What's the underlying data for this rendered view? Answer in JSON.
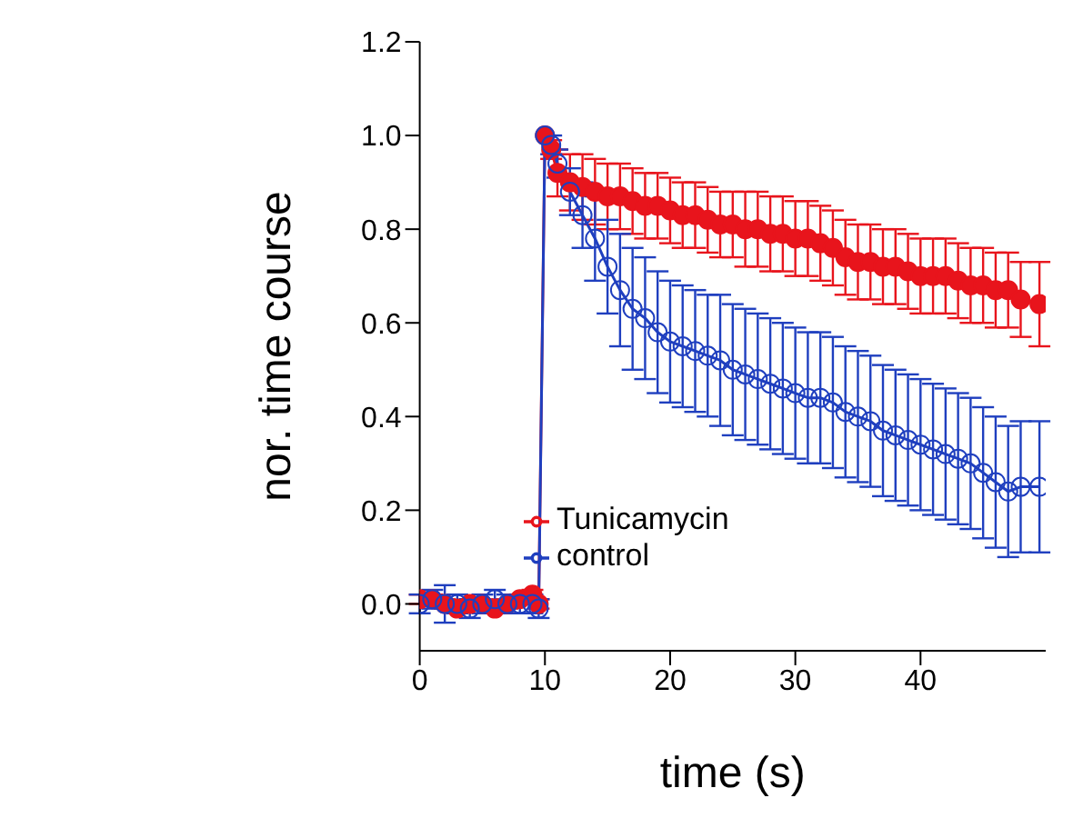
{
  "chart_data": {
    "type": "line",
    "xlabel": "time (s)",
    "ylabel": "nor. time course",
    "xlim": [
      0,
      50
    ],
    "xticks": [
      0,
      10,
      20,
      30,
      40
    ],
    "ylim": [
      -0.1,
      1.2
    ],
    "yticks": [
      {
        "value": 0,
        "label": "0.0"
      },
      {
        "value": 0.2,
        "label": "0.2"
      },
      {
        "value": 0.4,
        "label": "0.4"
      },
      {
        "value": 0.6,
        "label": "0.6"
      },
      {
        "value": 0.8,
        "label": "0.8"
      },
      {
        "value": 1,
        "label": "1.0"
      },
      {
        "value": 1.2,
        "label": "1.2"
      }
    ],
    "grid": false,
    "legend": "bottom",
    "marker": "circle",
    "line_style": "solid",
    "x": [
      0,
      1,
      2,
      3,
      4,
      5,
      6,
      7,
      8,
      9,
      9.5,
      10,
      10.5,
      11,
      12,
      13,
      14,
      15,
      16,
      17,
      18,
      19,
      20,
      21,
      22,
      23,
      24,
      25,
      26,
      27,
      28,
      29,
      30,
      31,
      32,
      33,
      34,
      35,
      36,
      37,
      38,
      39,
      40,
      41,
      42,
      43,
      44,
      45,
      46,
      47,
      48,
      49.5
    ],
    "series": [
      {
        "name": "Tunicamycin",
        "color": "#e8141c",
        "marker": "circle",
        "values": [
          0.01,
          0.01,
          0,
          -0.01,
          0,
          0,
          -0.01,
          0,
          0.01,
          0.02,
          0,
          1,
          0.97,
          0.92,
          0.9,
          0.89,
          0.88,
          0.87,
          0.87,
          0.86,
          0.85,
          0.85,
          0.84,
          0.83,
          0.83,
          0.82,
          0.81,
          0.81,
          0.8,
          0.8,
          0.79,
          0.79,
          0.78,
          0.78,
          0.77,
          0.76,
          0.74,
          0.73,
          0.73,
          0.72,
          0.72,
          0.71,
          0.7,
          0.7,
          0.7,
          0.69,
          0.68,
          0.68,
          0.67,
          0.67,
          0.65,
          0.64
        ],
        "errors": [
          0.01,
          0.01,
          0.01,
          0.01,
          0.01,
          0.01,
          0.01,
          0.01,
          0.01,
          0.01,
          0.01,
          null,
          0.02,
          0.05,
          0.06,
          0.07,
          0.07,
          0.07,
          0.07,
          0.07,
          0.07,
          0.07,
          0.07,
          0.07,
          0.07,
          0.07,
          0.07,
          0.07,
          0.08,
          0.08,
          0.08,
          0.08,
          0.08,
          0.08,
          0.08,
          0.08,
          0.08,
          0.08,
          0.08,
          0.08,
          0.08,
          0.08,
          0.08,
          0.08,
          0.08,
          0.08,
          0.08,
          0.08,
          0.08,
          0.08,
          0.08,
          0.09
        ]
      },
      {
        "name": "control",
        "color": "#1f3fbf",
        "marker": "circle-open",
        "values": [
          0,
          0.01,
          0,
          0,
          -0.01,
          0,
          0.01,
          0,
          0,
          0,
          -0.01,
          1,
          0.98,
          0.94,
          0.88,
          0.83,
          0.78,
          0.72,
          0.67,
          0.63,
          0.61,
          0.58,
          0.56,
          0.55,
          0.54,
          0.53,
          0.52,
          0.5,
          0.49,
          0.48,
          0.47,
          0.46,
          0.45,
          0.44,
          0.44,
          0.43,
          0.41,
          0.4,
          0.39,
          0.37,
          0.36,
          0.35,
          0.34,
          0.33,
          0.32,
          0.31,
          0.3,
          0.28,
          0.26,
          0.24,
          0.25,
          0.25
        ],
        "errors": [
          0.02,
          0.02,
          0.04,
          0.02,
          0.02,
          0.02,
          0.02,
          0.02,
          0.02,
          0.02,
          0.02,
          null,
          0.02,
          0.03,
          0.05,
          0.07,
          0.09,
          0.1,
          0.12,
          0.13,
          0.13,
          0.13,
          0.13,
          0.13,
          0.13,
          0.13,
          0.14,
          0.14,
          0.14,
          0.14,
          0.14,
          0.14,
          0.14,
          0.14,
          0.14,
          0.14,
          0.14,
          0.14,
          0.14,
          0.14,
          0.14,
          0.14,
          0.14,
          0.14,
          0.14,
          0.14,
          0.14,
          0.14,
          0.14,
          0.14,
          0.14,
          0.14
        ]
      }
    ]
  }
}
